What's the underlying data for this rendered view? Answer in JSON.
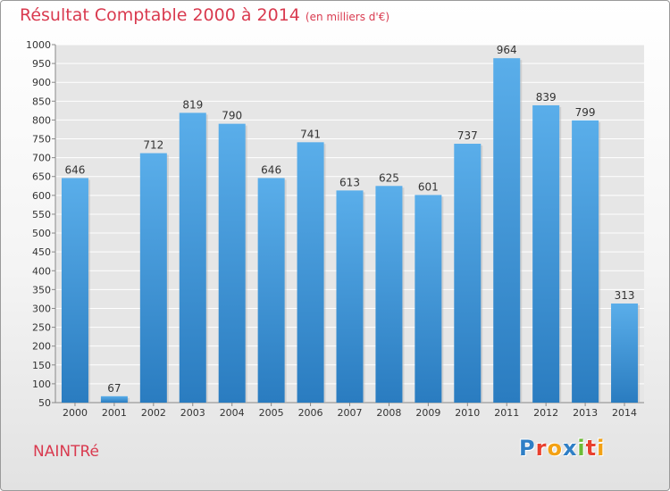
{
  "header": {
    "title": "Résultat Comptable 2000 à 2014",
    "subtitle": "(en milliers d'€)"
  },
  "commune": "NAINTRé",
  "logo": {
    "text": "Proxiti",
    "letter_colors": [
      "#2f7fc6",
      "#e8402f",
      "#f3a114",
      "#2f7fc6",
      "#6cbb35",
      "#e8402f",
      "#f3a114"
    ]
  },
  "colors": {
    "bar": "#3d95d6",
    "title": "#d93a4f",
    "grid": "#ffffff",
    "plot_background": "#e6e6e6"
  },
  "chart_data": {
    "type": "bar",
    "categories": [
      "2000",
      "2001",
      "2002",
      "2003",
      "2004",
      "2005",
      "2006",
      "2007",
      "2008",
      "2009",
      "2010",
      "2011",
      "2012",
      "2013",
      "2014"
    ],
    "values": [
      646,
      67,
      712,
      819,
      790,
      646,
      741,
      613,
      625,
      601,
      737,
      964,
      839,
      799,
      313
    ],
    "ylim": [
      50,
      1000
    ],
    "yticks": [
      50,
      100,
      150,
      200,
      250,
      300,
      350,
      400,
      450,
      500,
      550,
      600,
      650,
      700,
      750,
      800,
      850,
      900,
      950,
      1000
    ],
    "grid": true,
    "data_labels": true,
    "xlabel": "",
    "ylabel": ""
  }
}
